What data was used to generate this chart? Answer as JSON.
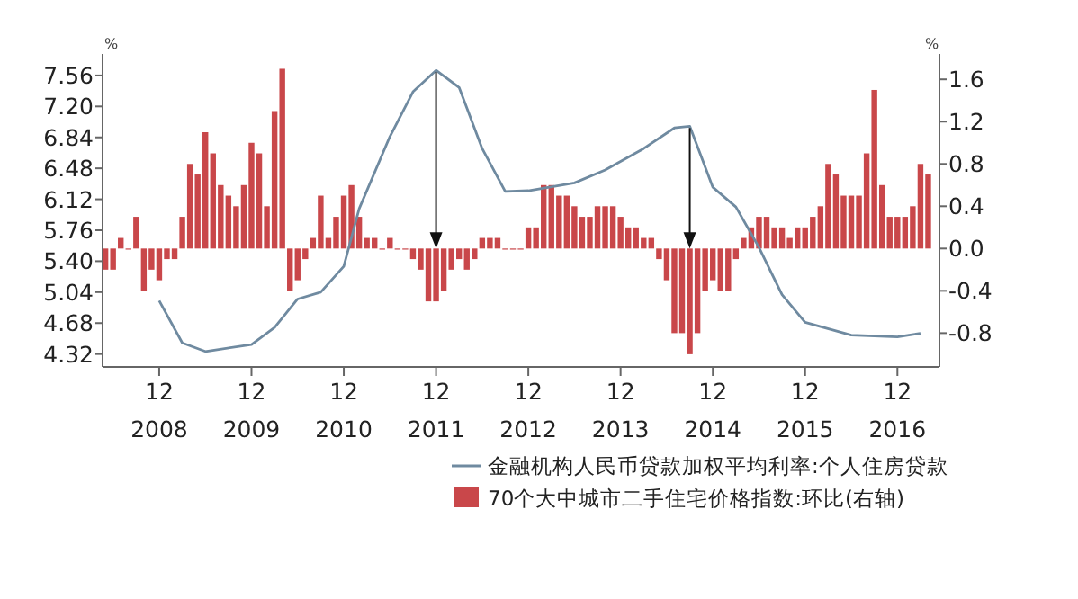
{
  "chart_data": {
    "type": "bar",
    "series": [
      {
        "name": "金融机构人民币贷款加权平均利率:个人住房贷款",
        "type": "line",
        "axis": "y",
        "color": "#6f8aa0",
        "x": [
          "2008-12",
          "2009-03",
          "2009-06",
          "2009-12",
          "2010-03",
          "2010-06",
          "2010-09",
          "2010-12",
          "2011-02",
          "2011-06",
          "2011-09",
          "2011-12",
          "2012-03",
          "2012-06",
          "2012-09",
          "2012-12",
          "2013-06",
          "2013-10",
          "2014-03",
          "2014-07",
          "2014-09",
          "2014-12",
          "2015-03",
          "2015-06",
          "2015-09",
          "2015-12",
          "2016-06",
          "2016-12",
          "2017-03"
        ],
        "values": [
          4.94,
          4.45,
          4.35,
          4.43,
          4.63,
          4.96,
          5.04,
          5.34,
          6.01,
          6.85,
          7.37,
          7.62,
          7.42,
          6.71,
          6.21,
          6.22,
          6.31,
          6.46,
          6.71,
          6.95,
          6.97,
          6.26,
          6.03,
          5.56,
          5.01,
          4.69,
          4.54,
          4.52,
          4.56
        ]
      },
      {
        "name": "70个大中城市二手住宅价格指数:环比(右轴)",
        "axis": "y2",
        "color": "#c9474a",
        "x": [
          "2008-05",
          "2008-06",
          "2008-07",
          "2008-08",
          "2008-09",
          "2008-10",
          "2008-11",
          "2008-12",
          "2009-01",
          "2009-02",
          "2009-03",
          "2009-04",
          "2009-05",
          "2009-06",
          "2009-07",
          "2009-08",
          "2009-09",
          "2009-10",
          "2009-11",
          "2009-12",
          "2010-01",
          "2010-02",
          "2010-03",
          "2010-04",
          "2010-05",
          "2010-06",
          "2010-07",
          "2010-08",
          "2010-09",
          "2010-10",
          "2010-11",
          "2010-12",
          "2011-01",
          "2011-02",
          "2011-03",
          "2011-04",
          "2011-05",
          "2011-06",
          "2011-07",
          "2011-08",
          "2011-09",
          "2011-10",
          "2011-11",
          "2011-12",
          "2012-01",
          "2012-02",
          "2012-03",
          "2012-04",
          "2012-05",
          "2012-06",
          "2012-07",
          "2012-08",
          "2012-09",
          "2012-10",
          "2012-11",
          "2012-12",
          "2013-01",
          "2013-02",
          "2013-03",
          "2013-04",
          "2013-05",
          "2013-06",
          "2013-07",
          "2013-08",
          "2013-09",
          "2013-10",
          "2013-11",
          "2013-12",
          "2014-01",
          "2014-02",
          "2014-03",
          "2014-04",
          "2014-05",
          "2014-06",
          "2014-07",
          "2014-08",
          "2014-09",
          "2014-10",
          "2014-11",
          "2014-12",
          "2015-01",
          "2015-02",
          "2015-03",
          "2015-04",
          "2015-05",
          "2015-06",
          "2015-07",
          "2015-08",
          "2015-09",
          "2015-10",
          "2015-11",
          "2015-12",
          "2016-01",
          "2016-02",
          "2016-03",
          "2016-04",
          "2016-05",
          "2016-06",
          "2016-07",
          "2016-08",
          "2016-09",
          "2016-10",
          "2016-11",
          "2016-12",
          "2017-01",
          "2017-02",
          "2017-03",
          "2017-04"
        ],
        "values": [
          -0.2,
          -0.2,
          0.1,
          0,
          0.3,
          -0.4,
          -0.2,
          -0.3,
          -0.1,
          -0.1,
          0.3,
          0.8,
          0.7,
          1.1,
          0.9,
          0.6,
          0.5,
          0.4,
          0.6,
          1.0,
          0.9,
          0.4,
          1.3,
          1.7,
          -0.4,
          -0.3,
          -0.1,
          0.1,
          0.5,
          0.1,
          0.3,
          0.5,
          0.6,
          0.3,
          0.1,
          0.1,
          0,
          0.1,
          0,
          0,
          -0.1,
          -0.2,
          -0.5,
          -0.5,
          -0.4,
          -0.2,
          -0.1,
          -0.2,
          -0.1,
          0.1,
          0.1,
          0.1,
          0,
          0,
          0,
          0.2,
          0.2,
          0.6,
          0.6,
          0.5,
          0.5,
          0.4,
          0.3,
          0.3,
          0.4,
          0.4,
          0.4,
          0.3,
          0.2,
          0.2,
          0.1,
          0.1,
          -0.1,
          -0.3,
          -0.8,
          -0.8,
          -1.0,
          -0.8,
          -0.4,
          -0.3,
          -0.4,
          -0.4,
          -0.1,
          0.1,
          0.2,
          0.3,
          0.3,
          0.2,
          0.2,
          0.1,
          0.2,
          0.2,
          0.3,
          0.4,
          0.8,
          0.7,
          0.5,
          0.5,
          0.5,
          0.9,
          1.5,
          0.6,
          0.3,
          0.3,
          0.3,
          0.4,
          0.8,
          0.7
        ]
      }
    ],
    "xlim": [
      "2008-04-20",
      "2017-05-15"
    ],
    "xticks": [
      {
        "value": "2008-12",
        "label": "12\n2008"
      },
      {
        "value": "2009-12",
        "label": "12\n2009"
      },
      {
        "value": "2010-12",
        "label": "12\n2010"
      },
      {
        "value": "2011-12",
        "label": "12\n2011"
      },
      {
        "value": "2012-12",
        "label": "12\n2012"
      },
      {
        "value": "2013-12",
        "label": "12\n2013"
      },
      {
        "value": "2014-12",
        "label": "12\n2014"
      },
      {
        "value": "2015-12",
        "label": "12\n2015"
      },
      {
        "value": "2016-12",
        "label": "12\n2016"
      }
    ],
    "ylabel": "%",
    "y2label": "%",
    "ylim": [
      4.17,
      7.81
    ],
    "yticks": [
      4.32,
      4.68,
      5.04,
      {
        "value": 5.4,
        "label": "5.40"
      },
      5.76,
      6.12,
      6.48,
      6.84,
      {
        "value": 7.2,
        "label": "7.20"
      },
      7.56
    ],
    "y2lim": [
      -1.12,
      1.84
    ],
    "y2ticks": [
      -0.8,
      -0.4,
      {
        "value": 0,
        "label": "0.0"
      },
      0.4,
      0.8,
      1.2,
      1.6
    ],
    "grid": false,
    "legend": "bottom"
  }
}
